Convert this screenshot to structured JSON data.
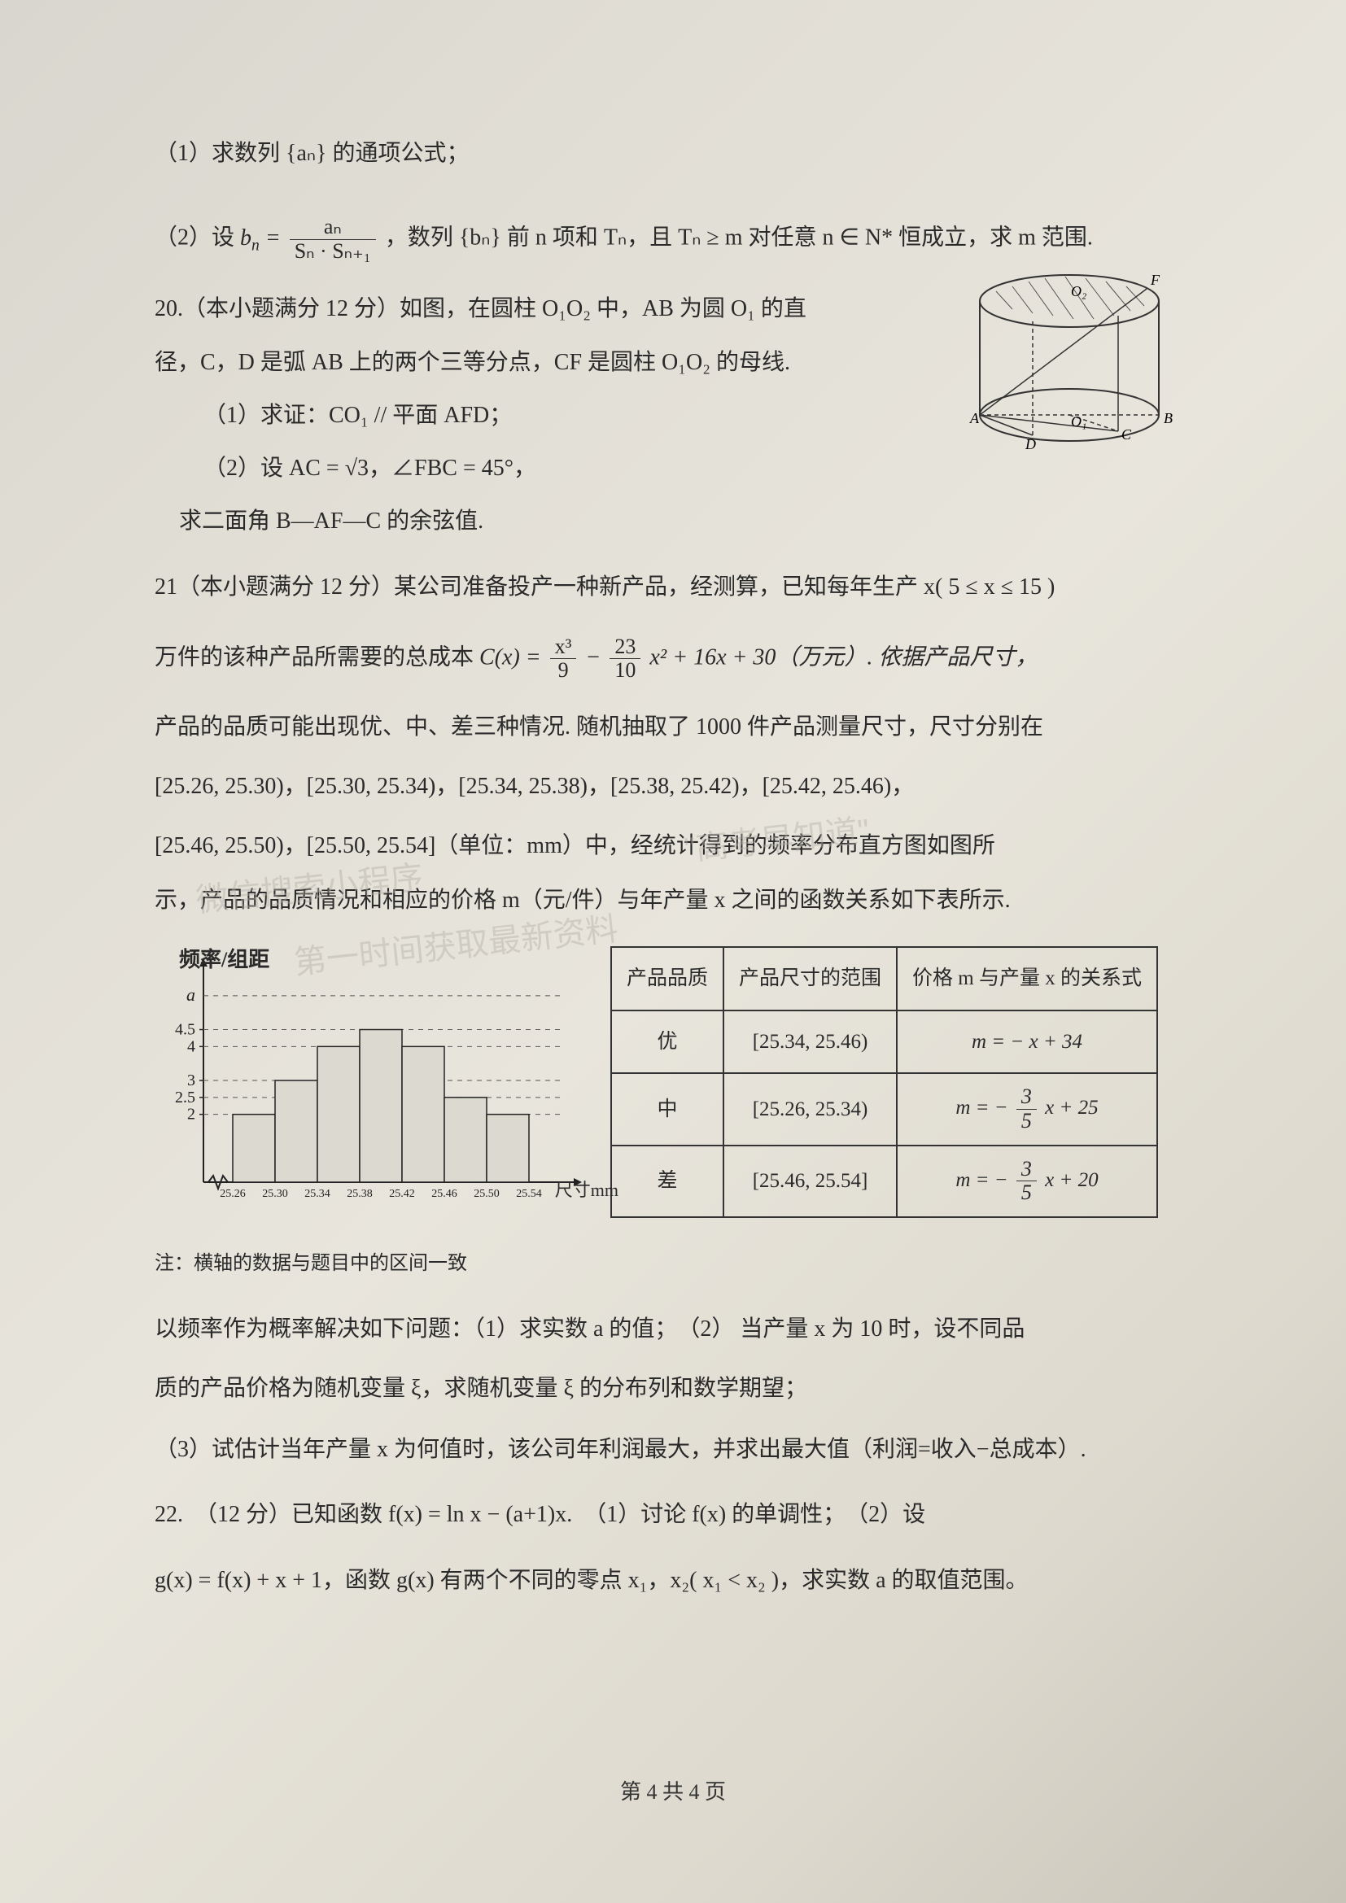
{
  "page_number_label": "第 4 共 4 页",
  "q19": {
    "part1": "（1）求数列 {aₙ} 的通项公式；",
    "part2_pre": "（2）设 ",
    "bn_formula_top": "aₙ",
    "bn_formula_bot": "Sₙ · Sₙ₊₁",
    "part2_mid": "，数列 {bₙ} 前 n 项和 Tₙ，且 Tₙ ≥ m 对任意 n ∈ N* 恒成立，求 m 范围."
  },
  "q20": {
    "header": "20.（本小题满分 12 分）如图，在圆柱 O₁O₂ 中，AB 为圆 O₁ 的直",
    "l2": "径，C，D 是弧 AB 上的两个三等分点，CF 是圆柱 O₁O₂ 的母线.",
    "p1": "（1）求证：CO₁ // 平面 AFD；",
    "p2": "（2）设 AC = √3，∠FBC = 45°，",
    "p3": "求二面角 B—AF—C 的余弦值.",
    "fig_labels": {
      "O2": "O₂",
      "O1": "O₁",
      "A": "A",
      "B": "B",
      "C": "C",
      "D": "D",
      "F": "F"
    }
  },
  "q21": {
    "header": "21（本小题满分 12 分）某公司准备投产一种新产品，经测算，已知每年生产 x( 5 ≤ x ≤ 15 )",
    "cost_pre": "万件的该种产品所需要的总成本 ",
    "cost_lhs": "C(x) = ",
    "cost_term1_top": "x³",
    "cost_term1_bot": "9",
    "cost_term2_top": "23",
    "cost_term2_bot": "10",
    "cost_rest": " x² + 16x + 30（万元）. 依据产品尺寸，",
    "l3": "产品的品质可能出现优、中、差三种情况. 随机抽取了 1000 件产品测量尺寸，尺寸分别在",
    "intervals": "[25.26, 25.30)，[25.30, 25.34)，[25.34, 25.38)，[25.38, 25.42)，[25.42, 25.46)，",
    "intervals2": "[25.46, 25.50)，[25.50, 25.54]（单位：mm）中，经统计得到的频率分布直方图如图所",
    "l6": "示，产品的品质情况和相应的价格 m（元/件）与年产量 x 之间的函数关系如下表所示.",
    "chart_ylabel": "频率/组距",
    "chart_xunit": "尺寸mm",
    "chart_note": "注：横轴的数据与题目中的区间一致",
    "chart": {
      "type": "histogram",
      "a_tick_label": "a",
      "yticks": [
        2,
        2.5,
        3,
        4,
        4.5
      ],
      "bars": [
        {
          "label": "25.26",
          "h": 2
        },
        {
          "label": "25.30",
          "h": 3
        },
        {
          "label": "25.34",
          "h": 4
        },
        {
          "label": "25.38",
          "h": 4.5
        },
        {
          "label": "25.42",
          "h": 4
        },
        {
          "label": "25.46",
          "h": 2.5
        },
        {
          "label": "25.50",
          "h": 2
        }
      ],
      "x_end_label": "25.54",
      "a_level": 5.5,
      "bar_fill": "#dcd9d0",
      "bar_stroke": "#222",
      "grid_color": "#555",
      "axis_color": "#222"
    },
    "table": {
      "h1": "产品品质",
      "h2": "产品尺寸的范围",
      "h3": "价格 m 与产量 x 的关系式",
      "r1": {
        "q": "优",
        "range": "[25.34, 25.46)",
        "rel": "m = − x + 34"
      },
      "r2": {
        "q": "中",
        "range": "[25.26, 25.34)",
        "rel_pre": "m = − ",
        "rel_top": "3",
        "rel_bot": "5",
        "rel_post": " x + 25"
      },
      "r3": {
        "q": "差",
        "range": "[25.46, 25.54]",
        "rel_pre": "m = − ",
        "rel_top": "3",
        "rel_bot": "5",
        "rel_post": " x + 20"
      }
    },
    "tail1": "以频率作为概率解决如下问题：（1）求实数 a 的值；　（2） 当产量 x 为 10 时，设不同品",
    "tail2": "质的产品价格为随机变量 ξ，求随机变量 ξ 的分布列和数学期望；",
    "tail3": "（3）试估计当年产量 x 为何值时，该公司年利润最大，并求出最大值（利润=收入−总成本）."
  },
  "q22": {
    "line1": "22.　（12 分）已知函数  f(x) = ln x − (a+1)x.　（1）讨论 f(x) 的单调性；　（2）设",
    "line2": "g(x) = f(x) + x + 1，函数 g(x) 有两个不同的零点 x₁，x₂( x₁ < x₂ )，求实数 a 的取值范围。"
  },
  "watermarks": {
    "w1": "微信搜索小程序",
    "w2": "第一时间获取最新资料",
    "w3": "\"高考早知道\""
  }
}
